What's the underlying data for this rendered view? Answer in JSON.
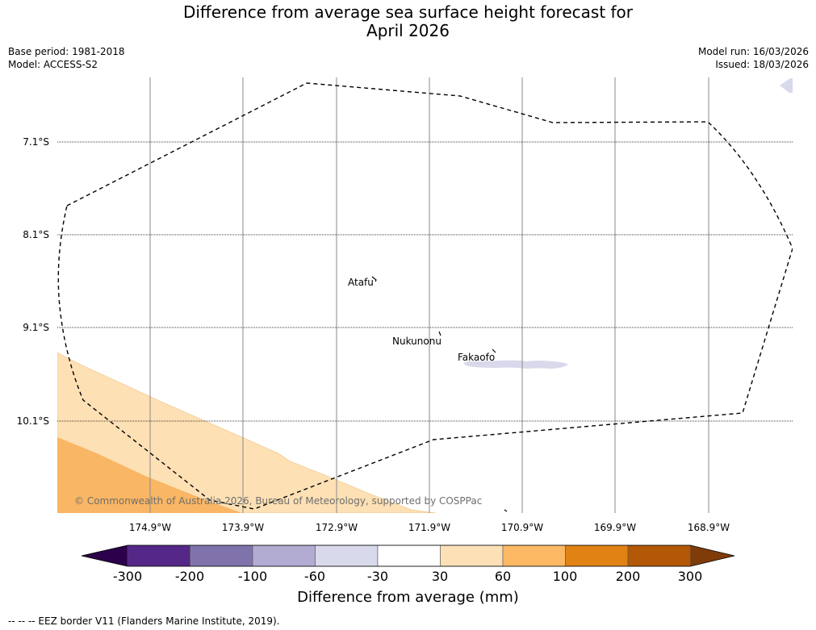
{
  "title": {
    "line1": "Difference from average sea surface height forecast for",
    "line2": "April 2026"
  },
  "meta": {
    "base_period": "Base period: 1981-2018",
    "model": "Model: ACCESS-S2",
    "model_run": "Model run: 16/03/2026",
    "issued": "Issued: 18/03/2026"
  },
  "map": {
    "lat_labels": [
      "7.1°S",
      "8.1°S",
      "9.1°S",
      "10.1°S"
    ],
    "lon_labels": [
      "174.9°W",
      "173.9°W",
      "172.9°W",
      "171.9°W",
      "170.9°W",
      "169.9°W",
      "168.9°W"
    ],
    "places": [
      "Atafu",
      "Nukunonu",
      "Fakaofo"
    ],
    "copyright": "© Commonwealth of Australia 2026, Bureau of Meteorology, supported by COSPPac",
    "anomaly_regions": [
      {
        "name": "30 to 60 mm",
        "color": "#fde0b4"
      },
      {
        "name": "60 to 100 mm",
        "color": "#f9b664"
      },
      {
        "name": "-60 to -30 mm",
        "color": "#d9d9ec"
      }
    ]
  },
  "colorbar": {
    "ticks": [
      "-300",
      "-200",
      "-100",
      "-60",
      "-30",
      "30",
      "60",
      "100",
      "200",
      "300"
    ],
    "colors": [
      "#2d004b",
      "#542788",
      "#8073ac",
      "#b2abd2",
      "#d8daeb",
      "#ffffff",
      "#fee0b6",
      "#fdb863",
      "#e08214",
      "#b35806",
      "#7f3b08"
    ],
    "label": "Difference from average (mm)"
  },
  "footer": "--  --  -- EEZ border V11 (Flanders Marine Institute, 2019)."
}
